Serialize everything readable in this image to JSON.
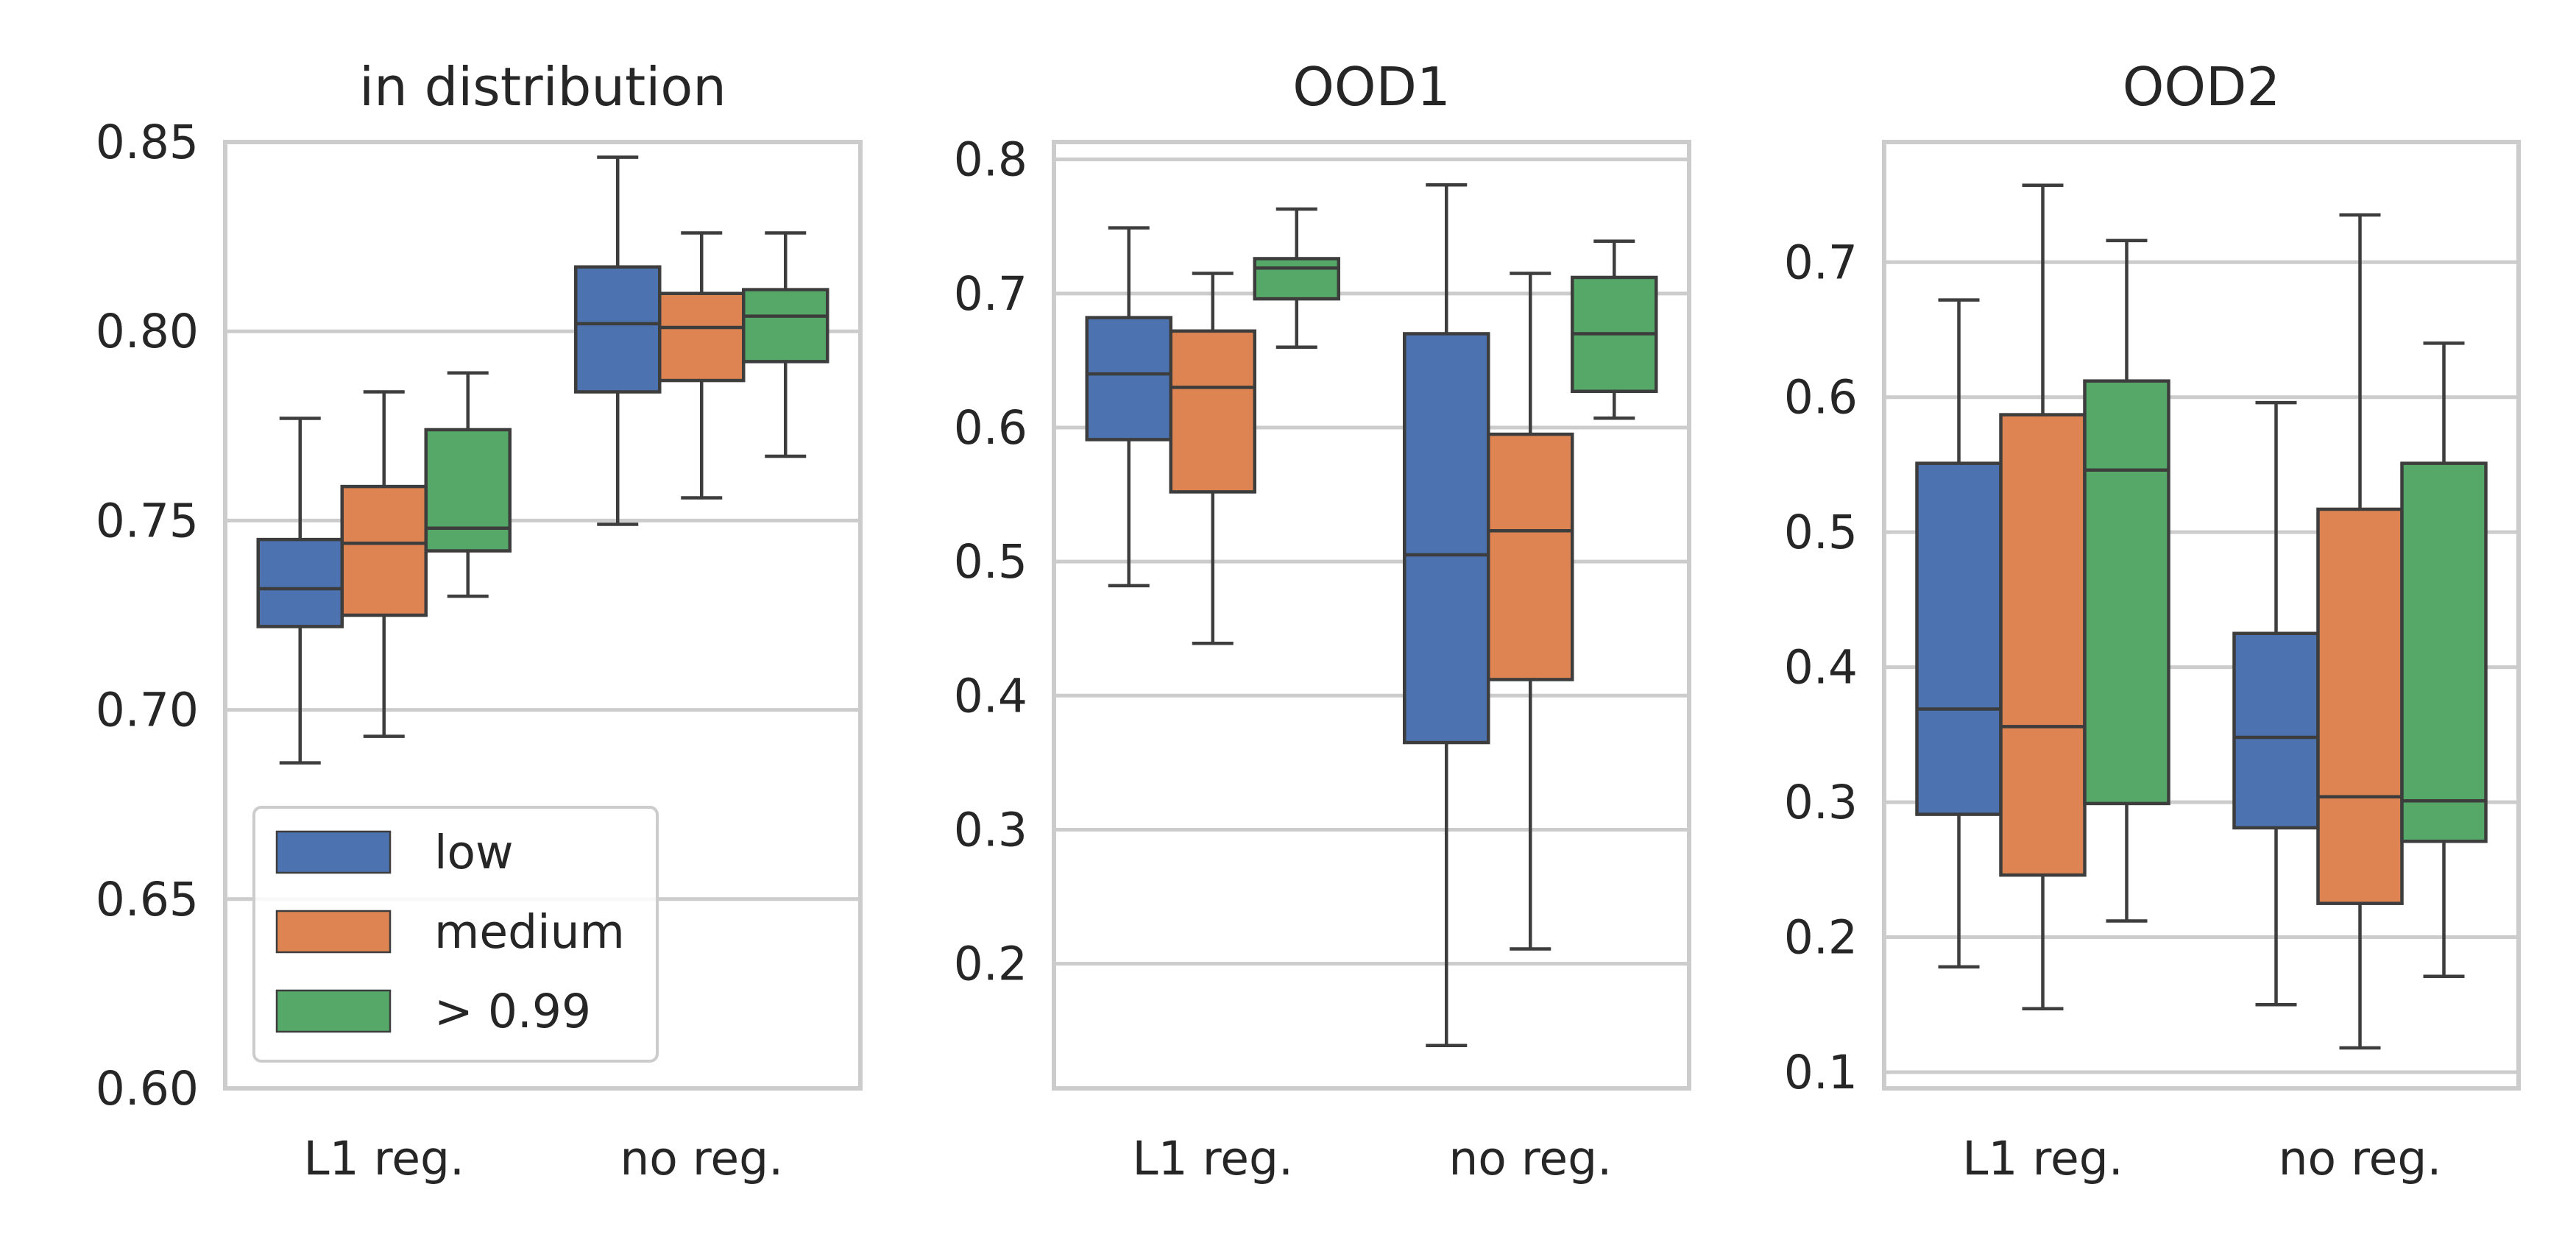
{
  "chart_data": [
    {
      "type": "boxplot",
      "title": "in distribution",
      "categories": [
        "L1 reg.",
        "no reg."
      ],
      "ylim": [
        0.6,
        0.85
      ],
      "yticks": [
        0.6,
        0.65,
        0.7,
        0.75,
        0.8,
        0.85
      ],
      "ytick_labels": [
        "0.60",
        "0.65",
        "0.70",
        "0.75",
        "0.80",
        "0.85"
      ],
      "grid": true,
      "legend": {
        "placement": "lower-left",
        "entries": [
          {
            "label": "low",
            "color": "#4c72b0"
          },
          {
            "label": "medium",
            "color": "#dd8452"
          },
          {
            "label": "> 0.99",
            "color": "#55a868"
          }
        ]
      },
      "series": [
        {
          "key": "low",
          "color": "#4c72b0",
          "boxes": [
            {
              "whislo": 0.686,
              "q1": 0.722,
              "med": 0.732,
              "q3": 0.745,
              "whishi": 0.777
            },
            {
              "whislo": 0.749,
              "q1": 0.784,
              "med": 0.802,
              "q3": 0.817,
              "whishi": 0.846
            }
          ]
        },
        {
          "key": "medium",
          "color": "#dd8452",
          "boxes": [
            {
              "whislo": 0.693,
              "q1": 0.725,
              "med": 0.744,
              "q3": 0.759,
              "whishi": 0.784
            },
            {
              "whislo": 0.756,
              "q1": 0.787,
              "med": 0.801,
              "q3": 0.81,
              "whishi": 0.826
            }
          ]
        },
        {
          "key": "> 0.99",
          "color": "#55a868",
          "boxes": [
            {
              "whislo": 0.73,
              "q1": 0.742,
              "med": 0.748,
              "q3": 0.774,
              "whishi": 0.789
            },
            {
              "whislo": 0.767,
              "q1": 0.792,
              "med": 0.804,
              "q3": 0.811,
              "whishi": 0.826
            }
          ]
        }
      ]
    },
    {
      "type": "boxplot",
      "title": "OOD1",
      "categories": [
        "L1 reg.",
        "no reg."
      ],
      "ylim": [
        0.107,
        0.813
      ],
      "yticks": [
        0.2,
        0.3,
        0.4,
        0.5,
        0.6,
        0.7,
        0.8
      ],
      "ytick_labels": [
        "0.2",
        "0.3",
        "0.4",
        "0.5",
        "0.6",
        "0.7",
        "0.8"
      ],
      "grid": true,
      "series": [
        {
          "key": "low",
          "color": "#4c72b0",
          "boxes": [
            {
              "whislo": 0.482,
              "q1": 0.591,
              "med": 0.64,
              "q3": 0.682,
              "whishi": 0.749
            },
            {
              "whislo": 0.139,
              "q1": 0.365,
              "med": 0.505,
              "q3": 0.67,
              "whishi": 0.781
            }
          ]
        },
        {
          "key": "medium",
          "color": "#dd8452",
          "boxes": [
            {
              "whislo": 0.439,
              "q1": 0.552,
              "med": 0.63,
              "q3": 0.672,
              "whishi": 0.715
            },
            {
              "whislo": 0.211,
              "q1": 0.412,
              "med": 0.523,
              "q3": 0.595,
              "whishi": 0.715
            }
          ]
        },
        {
          "key": "> 0.99",
          "color": "#55a868",
          "boxes": [
            {
              "whislo": 0.66,
              "q1": 0.696,
              "med": 0.719,
              "q3": 0.726,
              "whishi": 0.763
            },
            {
              "whislo": 0.607,
              "q1": 0.627,
              "med": 0.67,
              "q3": 0.712,
              "whishi": 0.739
            }
          ]
        }
      ]
    },
    {
      "type": "boxplot",
      "title": "OOD2",
      "categories": [
        "L1 reg.",
        "no reg."
      ],
      "ylim": [
        0.088,
        0.789
      ],
      "yticks": [
        0.1,
        0.2,
        0.3,
        0.4,
        0.5,
        0.6,
        0.7
      ],
      "ytick_labels": [
        "0.1",
        "0.2",
        "0.3",
        "0.4",
        "0.5",
        "0.6",
        "0.7"
      ],
      "grid": true,
      "series": [
        {
          "key": "low",
          "color": "#4c72b0",
          "boxes": [
            {
              "whislo": 0.178,
              "q1": 0.291,
              "med": 0.369,
              "q3": 0.551,
              "whishi": 0.672
            },
            {
              "whislo": 0.15,
              "q1": 0.281,
              "med": 0.348,
              "q3": 0.425,
              "whishi": 0.596
            }
          ]
        },
        {
          "key": "medium",
          "color": "#dd8452",
          "boxes": [
            {
              "whislo": 0.147,
              "q1": 0.246,
              "med": 0.356,
              "q3": 0.587,
              "whishi": 0.757
            },
            {
              "whislo": 0.118,
              "q1": 0.225,
              "med": 0.304,
              "q3": 0.517,
              "whishi": 0.735
            }
          ]
        },
        {
          "key": "> 0.99",
          "color": "#55a868",
          "boxes": [
            {
              "whislo": 0.212,
              "q1": 0.299,
              "med": 0.546,
              "q3": 0.612,
              "whishi": 0.716
            },
            {
              "whislo": 0.171,
              "q1": 0.271,
              "med": 0.301,
              "q3": 0.551,
              "whishi": 0.64
            }
          ]
        }
      ]
    }
  ]
}
